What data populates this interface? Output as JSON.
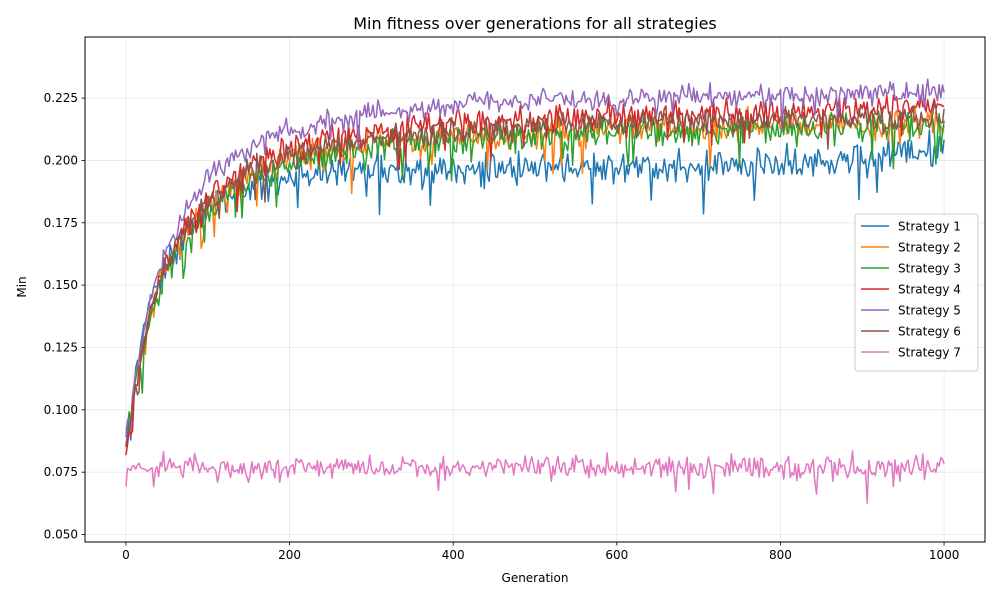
{
  "chart_data": {
    "type": "line",
    "title": "Min fitness over generations for all strategies",
    "xlabel": "Generation",
    "ylabel": "Min",
    "xlim": [
      -50,
      1050
    ],
    "ylim": [
      0.047,
      0.2495
    ],
    "xticks": [
      0,
      200,
      400,
      600,
      800,
      1000
    ],
    "xtick_labels": [
      "0",
      "200",
      "400",
      "600",
      "800",
      "1000"
    ],
    "yticks": [
      0.05,
      0.075,
      0.1,
      0.125,
      0.15,
      0.175,
      0.2,
      0.225
    ],
    "ytick_labels": [
      "0.050",
      "0.075",
      "0.100",
      "0.125",
      "0.150",
      "0.175",
      "0.200",
      "0.225"
    ],
    "grid": true,
    "legend_position": "center-right",
    "series": [
      {
        "name": "Strategy 1",
        "color": "#1f77b4",
        "x": [
          0,
          10,
          20,
          30,
          50,
          75,
          100,
          150,
          200,
          250,
          300,
          400,
          500,
          600,
          700,
          800,
          900,
          1000
        ],
        "values": [
          0.085,
          0.11,
          0.13,
          0.145,
          0.16,
          0.17,
          0.18,
          0.19,
          0.193,
          0.195,
          0.196,
          0.197,
          0.197,
          0.197,
          0.198,
          0.198,
          0.2,
          0.205
        ],
        "noise": 0.0065
      },
      {
        "name": "Strategy 2",
        "color": "#ff7f0e",
        "x": [
          0,
          10,
          20,
          30,
          50,
          75,
          100,
          150,
          200,
          250,
          300,
          400,
          500,
          600,
          700,
          800,
          900,
          1000
        ],
        "values": [
          0.09,
          0.11,
          0.125,
          0.14,
          0.158,
          0.172,
          0.182,
          0.193,
          0.2,
          0.204,
          0.206,
          0.209,
          0.211,
          0.212,
          0.213,
          0.214,
          0.215,
          0.215
        ],
        "noise": 0.006
      },
      {
        "name": "Strategy 3",
        "color": "#2ca02c",
        "x": [
          0,
          10,
          20,
          30,
          50,
          75,
          100,
          150,
          200,
          250,
          300,
          400,
          500,
          600,
          700,
          800,
          900,
          1000
        ],
        "values": [
          0.09,
          0.108,
          0.122,
          0.138,
          0.156,
          0.17,
          0.18,
          0.192,
          0.198,
          0.202,
          0.205,
          0.208,
          0.21,
          0.211,
          0.212,
          0.213,
          0.214,
          0.214
        ],
        "noise": 0.006
      },
      {
        "name": "Strategy 4",
        "color": "#d62728",
        "x": [
          0,
          10,
          20,
          30,
          50,
          75,
          100,
          150,
          200,
          250,
          300,
          400,
          500,
          600,
          700,
          800,
          900,
          1000
        ],
        "values": [
          0.082,
          0.105,
          0.122,
          0.14,
          0.16,
          0.175,
          0.186,
          0.198,
          0.205,
          0.209,
          0.212,
          0.215,
          0.217,
          0.218,
          0.219,
          0.22,
          0.221,
          0.222
        ],
        "noise": 0.0055
      },
      {
        "name": "Strategy 5",
        "color": "#9467bd",
        "x": [
          0,
          10,
          20,
          30,
          50,
          75,
          100,
          150,
          200,
          250,
          300,
          400,
          500,
          600,
          700,
          800,
          900,
          1000
        ],
        "values": [
          0.09,
          0.11,
          0.128,
          0.145,
          0.165,
          0.182,
          0.193,
          0.205,
          0.212,
          0.216,
          0.219,
          0.222,
          0.224,
          0.225,
          0.226,
          0.226,
          0.227,
          0.227
        ],
        "noise": 0.0045
      },
      {
        "name": "Strategy 6",
        "color": "#8c564b",
        "x": [
          0,
          10,
          20,
          30,
          50,
          75,
          100,
          150,
          200,
          250,
          300,
          400,
          500,
          600,
          700,
          800,
          900,
          1000
        ],
        "values": [
          0.085,
          0.106,
          0.124,
          0.14,
          0.158,
          0.172,
          0.183,
          0.195,
          0.202,
          0.206,
          0.209,
          0.212,
          0.214,
          0.215,
          0.216,
          0.216,
          0.217,
          0.217
        ],
        "noise": 0.005
      },
      {
        "name": "Strategy 7",
        "color": "#e377c2",
        "x": [
          0,
          1000
        ],
        "values": [
          0.077,
          0.077
        ],
        "noise": 0.0045
      }
    ]
  }
}
